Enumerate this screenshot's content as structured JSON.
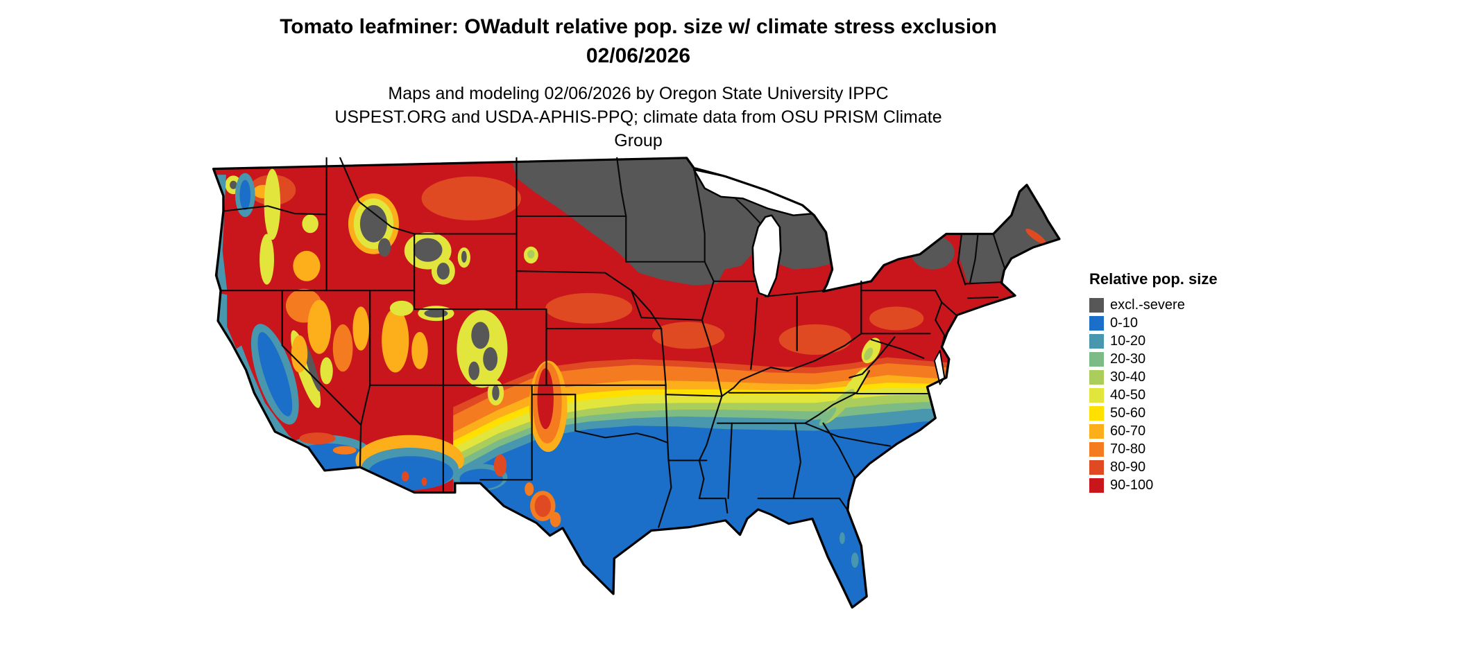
{
  "header": {
    "title": "Tomato leafminer: OWadult relative pop. size w/ climate stress exclusion 02/06/2026",
    "subtitle": "Maps and modeling 02/06/2026 by Oregon State University IPPC USPEST.ORG and USDA-APHIS-PPQ; climate data from OSU PRISM Climate Group"
  },
  "legend": {
    "title": "Relative pop. size",
    "items": [
      {
        "label": "excl.-severe",
        "color": "#575757"
      },
      {
        "label": "0-10",
        "color": "#1B6FC8"
      },
      {
        "label": "10-20",
        "color": "#4897AE"
      },
      {
        "label": "20-30",
        "color": "#7CBB86"
      },
      {
        "label": "30-40",
        "color": "#ABCD5B"
      },
      {
        "label": "40-50",
        "color": "#E2E53C"
      },
      {
        "label": "50-60",
        "color": "#FFE000"
      },
      {
        "label": "60-70",
        "color": "#FCAE1B"
      },
      {
        "label": "70-80",
        "color": "#F47B20"
      },
      {
        "label": "80-90",
        "color": "#E04A22"
      },
      {
        "label": "90-100",
        "color": "#C9161D"
      }
    ]
  },
  "map": {
    "region_label": "Contiguous United States",
    "water_color": "#ffffff",
    "boundary_color": "#000000"
  }
}
